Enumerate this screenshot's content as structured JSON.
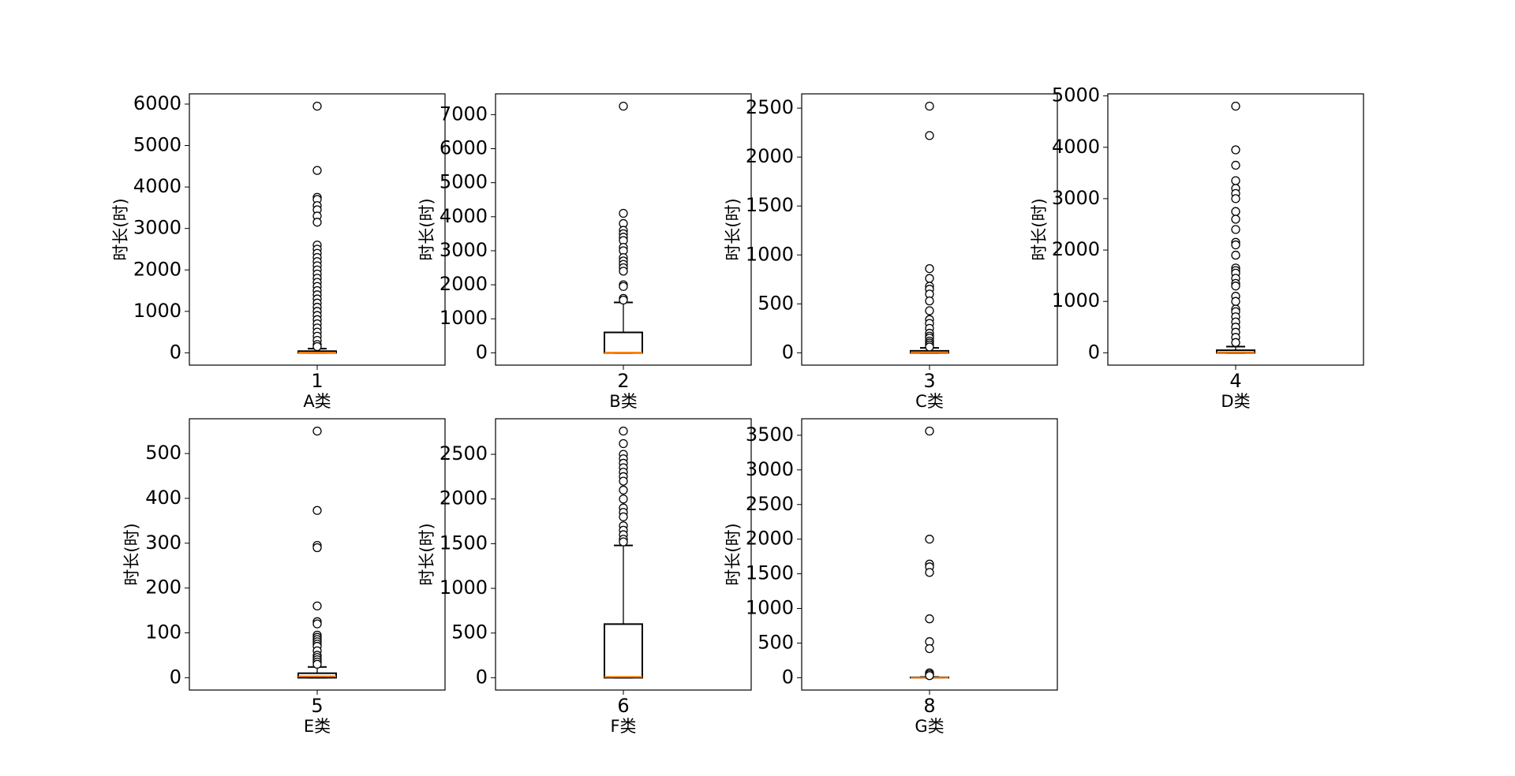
{
  "chart_data": [
    {
      "type": "box",
      "xlabel": "A类",
      "ylabel": "时长(时)",
      "categories": [
        "1"
      ],
      "whislo": 0,
      "q1": 0,
      "med": 5,
      "q3": 40,
      "whishi": 100,
      "fliers": [
        5950,
        4400,
        3750,
        3700,
        3550,
        3450,
        3300,
        3150,
        2600,
        2500,
        2400,
        2300,
        2200,
        2100,
        2000,
        1900,
        1800,
        1700,
        1600,
        1500,
        1400,
        1300,
        1200,
        1100,
        1000,
        900,
        800,
        700,
        600,
        500,
        400,
        300,
        200,
        150
      ],
      "ylim": [
        -297,
        6247
      ],
      "yticks": [
        0,
        1000,
        2000,
        3000,
        4000,
        5000,
        6000
      ],
      "color": "#000000",
      "median_color": "#ff7f0e"
    },
    {
      "type": "box",
      "xlabel": "B类",
      "ylabel": "时长(时)",
      "categories": [
        "2"
      ],
      "whislo": 0,
      "q1": 0,
      "med": 10,
      "q3": 600,
      "whishi": 1480,
      "fliers": [
        7250,
        4100,
        3800,
        3600,
        3500,
        3400,
        3300,
        3100,
        3000,
        2800,
        2700,
        2600,
        2500,
        2400,
        2000,
        1950,
        1600,
        1550
      ],
      "ylim": [
        -362,
        7612
      ],
      "yticks": [
        0,
        1000,
        2000,
        3000,
        4000,
        5000,
        6000,
        7000
      ],
      "color": "#000000",
      "median_color": "#ff7f0e"
    },
    {
      "type": "box",
      "xlabel": "C类",
      "ylabel": "时长(时)",
      "categories": [
        "3"
      ],
      "whislo": 0,
      "q1": 0,
      "med": 5,
      "q3": 20,
      "whishi": 50,
      "fliers": [
        2520,
        2220,
        860,
        760,
        680,
        650,
        600,
        530,
        430,
        340,
        300,
        250,
        200,
        170,
        150,
        120,
        100,
        80,
        60
      ],
      "ylim": [
        -126,
        2646
      ],
      "yticks": [
        0,
        500,
        1000,
        1500,
        2000,
        2500
      ],
      "color": "#000000",
      "median_color": "#ff7f0e"
    },
    {
      "type": "box",
      "xlabel": "D类",
      "ylabel": "时长(时)",
      "categories": [
        "4"
      ],
      "whislo": 0,
      "q1": 0,
      "med": 10,
      "q3": 50,
      "whishi": 120,
      "fliers": [
        4800,
        3950,
        3650,
        3350,
        3200,
        3100,
        3000,
        2750,
        2600,
        2400,
        2150,
        2100,
        1900,
        1650,
        1600,
        1550,
        1450,
        1350,
        1300,
        1100,
        1000,
        850,
        800,
        700,
        600,
        500,
        400,
        300,
        200
      ],
      "ylim": [
        -240,
        5040
      ],
      "yticks": [
        0,
        1000,
        2000,
        3000,
        4000,
        5000
      ],
      "color": "#000000",
      "median_color": "#ff7f0e"
    },
    {
      "type": "box",
      "xlabel": "E类",
      "ylabel": "时长(时)",
      "categories": [
        "5"
      ],
      "whislo": 0,
      "q1": 0,
      "med": 3,
      "q3": 10,
      "whishi": 24,
      "fliers": [
        550,
        373,
        295,
        290,
        160,
        125,
        120,
        95,
        90,
        85,
        80,
        75,
        70,
        60,
        50,
        45,
        40,
        35,
        30
      ],
      "ylim": [
        -27.5,
        577.5
      ],
      "yticks": [
        0,
        100,
        200,
        300,
        400,
        500
      ],
      "color": "#000000",
      "median_color": "#ff7f0e"
    },
    {
      "type": "box",
      "xlabel": "F类",
      "ylabel": "时长(时)",
      "categories": [
        "6"
      ],
      "whislo": 0,
      "q1": 0,
      "med": 10,
      "q3": 600,
      "whishi": 1480,
      "fliers": [
        2760,
        2620,
        2500,
        2450,
        2400,
        2350,
        2300,
        2250,
        2200,
        2100,
        2000,
        1900,
        1850,
        1800,
        1700,
        1650,
        1600,
        1550,
        1520
      ],
      "ylim": [
        -138,
        2898
      ],
      "yticks": [
        0,
        500,
        1000,
        1500,
        2000,
        2500
      ],
      "color": "#000000",
      "median_color": "#ff7f0e"
    },
    {
      "type": "box",
      "xlabel": "G类",
      "ylabel": "时长(时)",
      "categories": [
        "8"
      ],
      "whislo": 0,
      "q1": 0,
      "med": 0,
      "q3": 5,
      "whishi": 10,
      "fliers": [
        3560,
        2000,
        1640,
        1600,
        1520,
        850,
        520,
        420,
        70,
        50,
        30
      ],
      "ylim": [
        -178,
        3738
      ],
      "yticks": [
        0,
        500,
        1000,
        1500,
        2000,
        2500,
        3000,
        3500
      ],
      "color": "#000000",
      "median_color": "#ff7f0e"
    }
  ]
}
